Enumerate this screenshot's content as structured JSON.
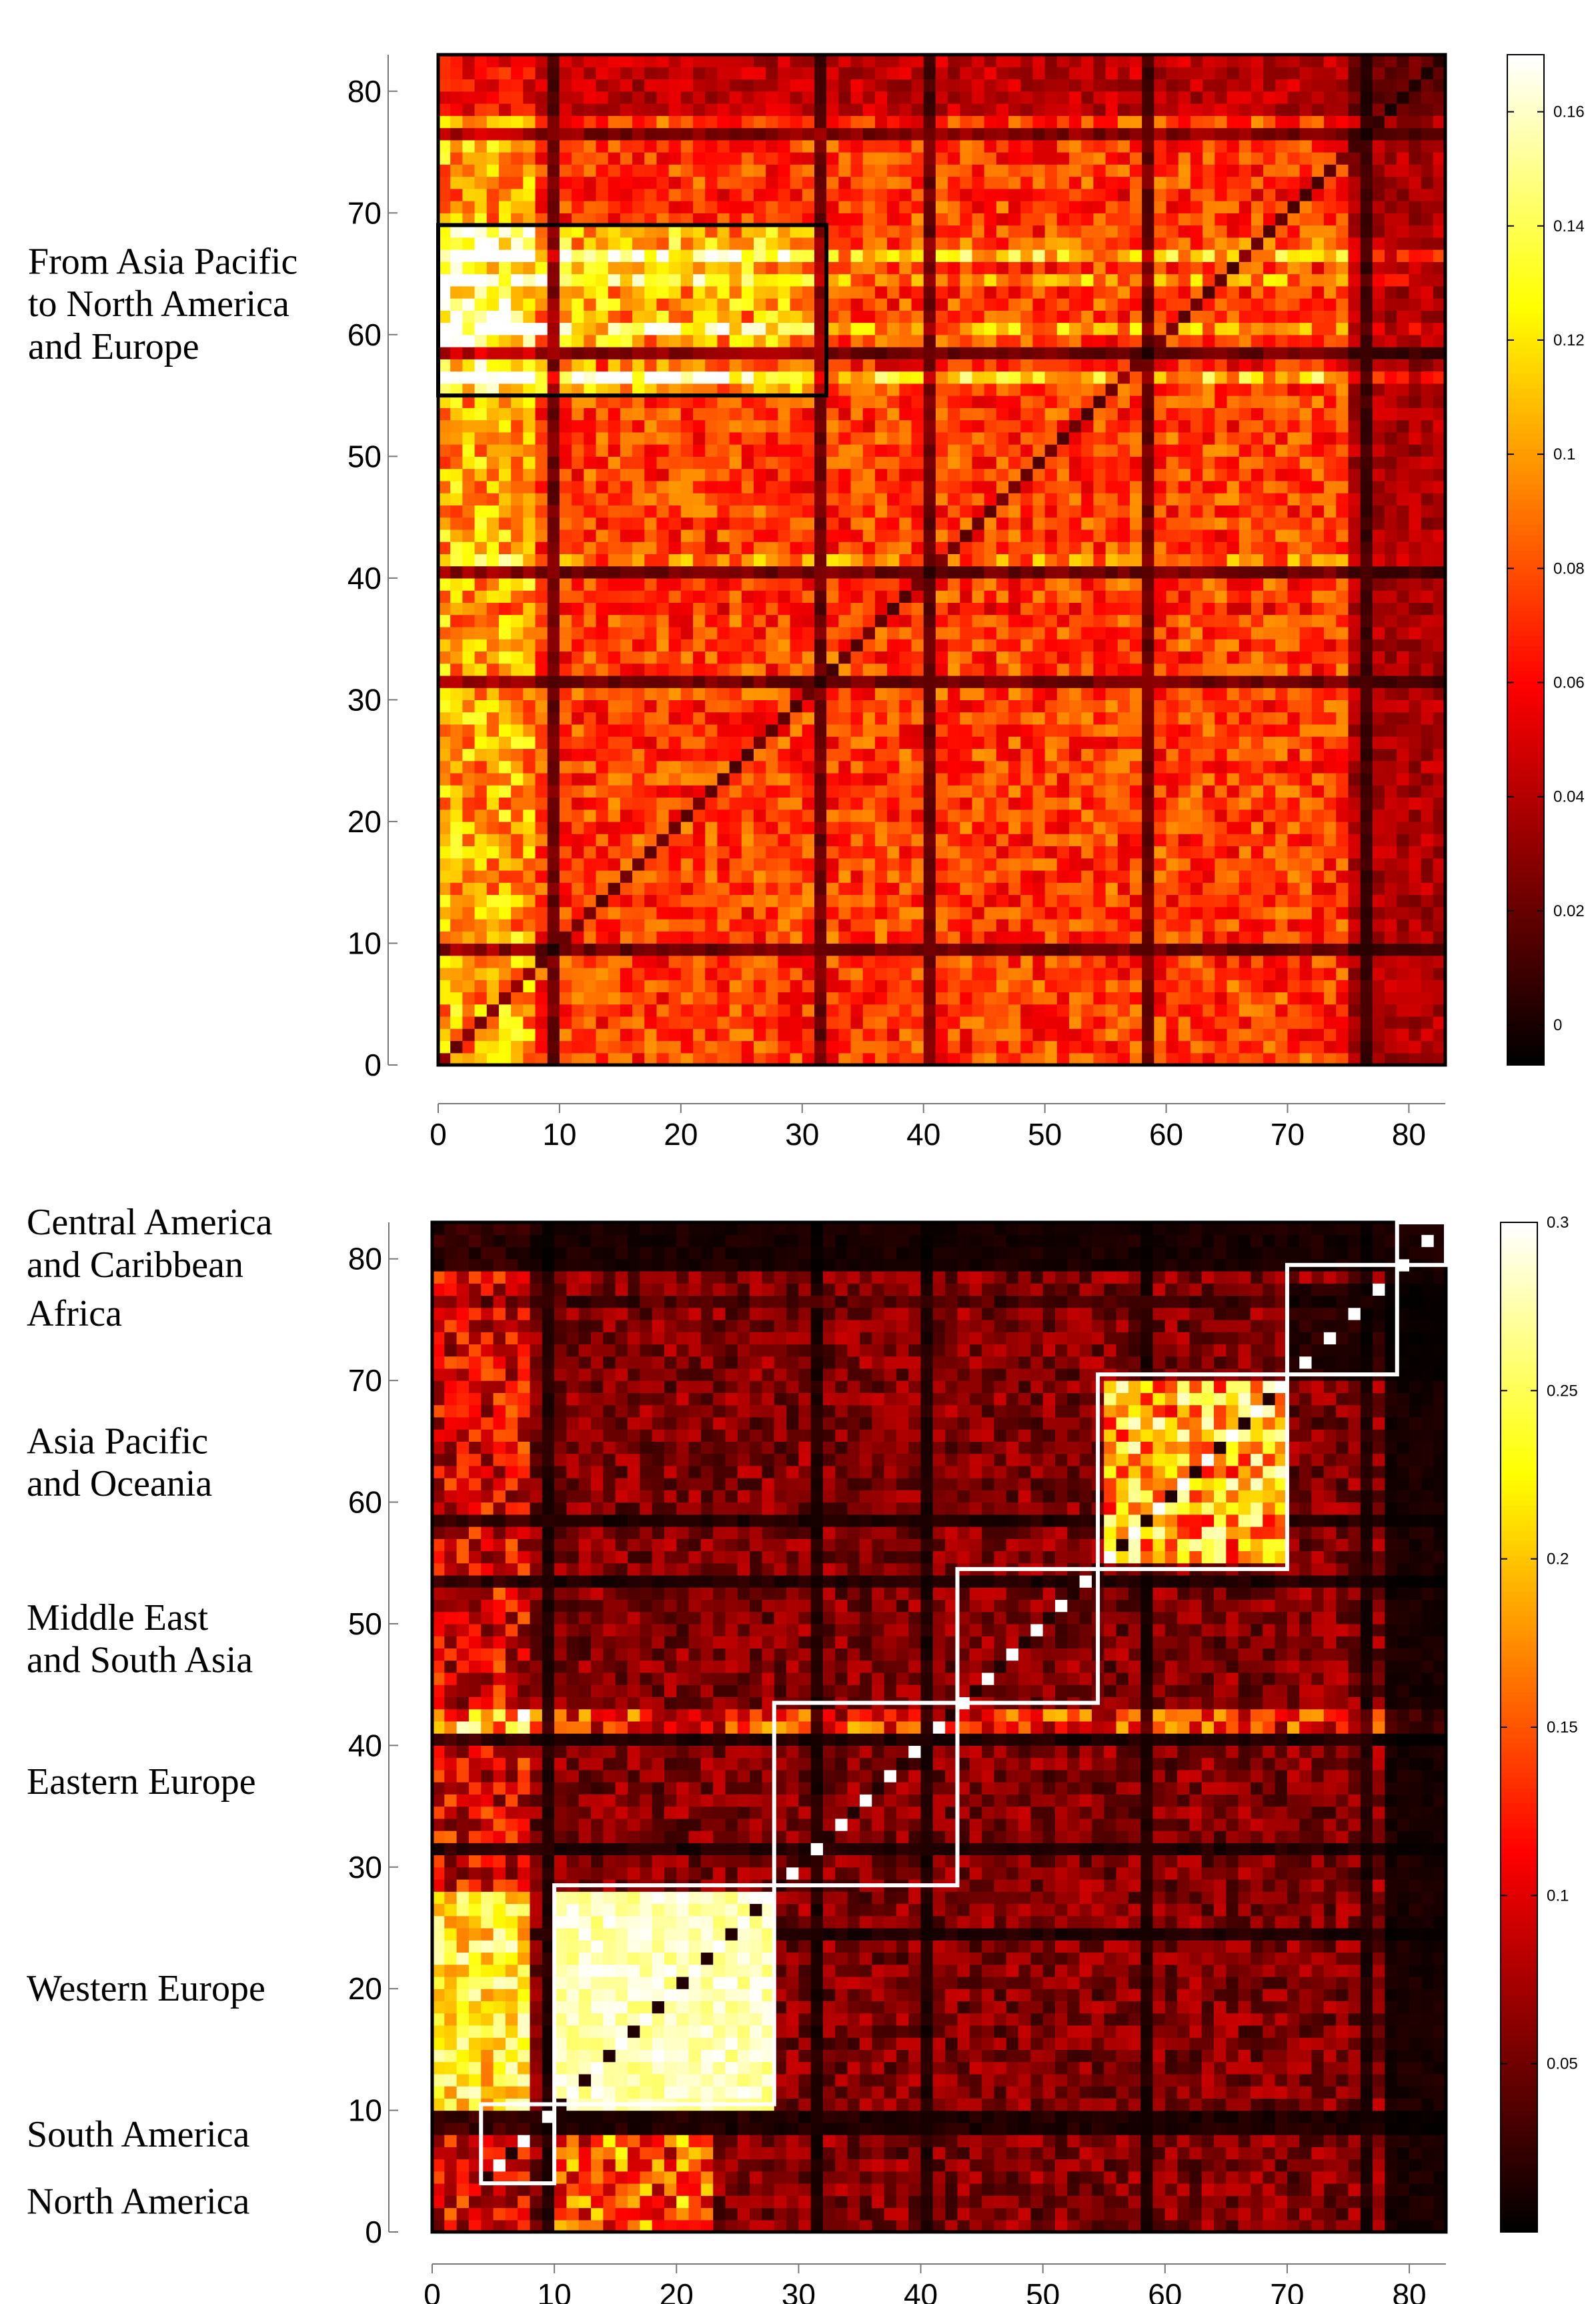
{
  "chart_data": [
    {
      "type": "heatmap",
      "title": "",
      "xlabel": "",
      "ylabel": "",
      "xlim": [
        0,
        83
      ],
      "ylim": [
        0,
        83
      ],
      "x_ticks": [
        "0",
        "10",
        "20",
        "30",
        "40",
        "50",
        "60",
        "70",
        "80"
      ],
      "y_ticks": [
        "0",
        "10",
        "20",
        "30",
        "40",
        "50",
        "60",
        "70",
        "80"
      ],
      "colormap": "hot",
      "colorbar": {
        "range": [
          -0.007,
          0.17
        ],
        "ticks": [
          "0",
          "0.02",
          "0.04",
          "0.06",
          "0.08",
          "0.1",
          "0.12",
          "0.14",
          "0.16"
        ]
      },
      "highlight_boxes": [
        {
          "x": [
            0,
            32
          ],
          "y": [
            55,
            69
          ],
          "color": "#000000"
        }
      ],
      "annotations": [
        {
          "text": "From Asia Pacific",
          "y": 66
        },
        {
          "text": "to North America",
          "y": 62.5
        },
        {
          "text": "and Europe",
          "y": 59
        }
      ],
      "grid": false
    },
    {
      "type": "heatmap",
      "title": "",
      "xlabel": "",
      "ylabel": "",
      "xlim": [
        0,
        83
      ],
      "ylim": [
        0,
        83
      ],
      "x_ticks": [
        "0",
        "10",
        "20",
        "30",
        "40",
        "50",
        "60",
        "70",
        "80"
      ],
      "y_ticks": [
        "0",
        "10",
        "20",
        "30",
        "40",
        "50",
        "60",
        "70",
        "80"
      ],
      "colormap": "hot",
      "colorbar": {
        "range": [
          0,
          0.3
        ],
        "ticks": [
          "0.05",
          "0.1",
          "0.15",
          "0.2",
          "0.25",
          "0.3"
        ]
      },
      "highlight_boxes": [
        {
          "x": [
            4,
            10
          ],
          "y": [
            4,
            10.5
          ],
          "color": "#ffffff"
        },
        {
          "x": [
            10,
            28
          ],
          "y": [
            10.5,
            28.5
          ],
          "color": "#ffffff"
        },
        {
          "x": [
            28,
            43
          ],
          "y": [
            28.5,
            43.5
          ],
          "color": "#ffffff"
        },
        {
          "x": [
            43,
            54.5
          ],
          "y": [
            43.5,
            54.5
          ],
          "color": "#ffffff"
        },
        {
          "x": [
            54.5,
            70
          ],
          "y": [
            54.5,
            70.5
          ],
          "color": "#ffffff"
        },
        {
          "x": [
            70,
            79
          ],
          "y": [
            70.5,
            79.5
          ],
          "color": "#ffffff"
        },
        {
          "x": [
            79,
            83
          ],
          "y": [
            79.5,
            83
          ],
          "color": "#ffffff"
        }
      ],
      "annotations": [
        {
          "text": "Central America",
          "y": 83
        },
        {
          "text": "and Caribbean",
          "y": 79.5
        },
        {
          "text": "Africa",
          "y": 75.5
        },
        {
          "text": "Asia Pacific",
          "y": 65
        },
        {
          "text": "and Oceania",
          "y": 61.5
        },
        {
          "text": "Middle East",
          "y": 50.5
        },
        {
          "text": "and South Asia",
          "y": 47
        },
        {
          "text": "Eastern Europe",
          "y": 37
        },
        {
          "text": "Western Europe",
          "y": 20
        },
        {
          "text": "South America",
          "y": 8
        },
        {
          "text": "North America",
          "y": 2.5
        }
      ],
      "grid": false
    }
  ]
}
